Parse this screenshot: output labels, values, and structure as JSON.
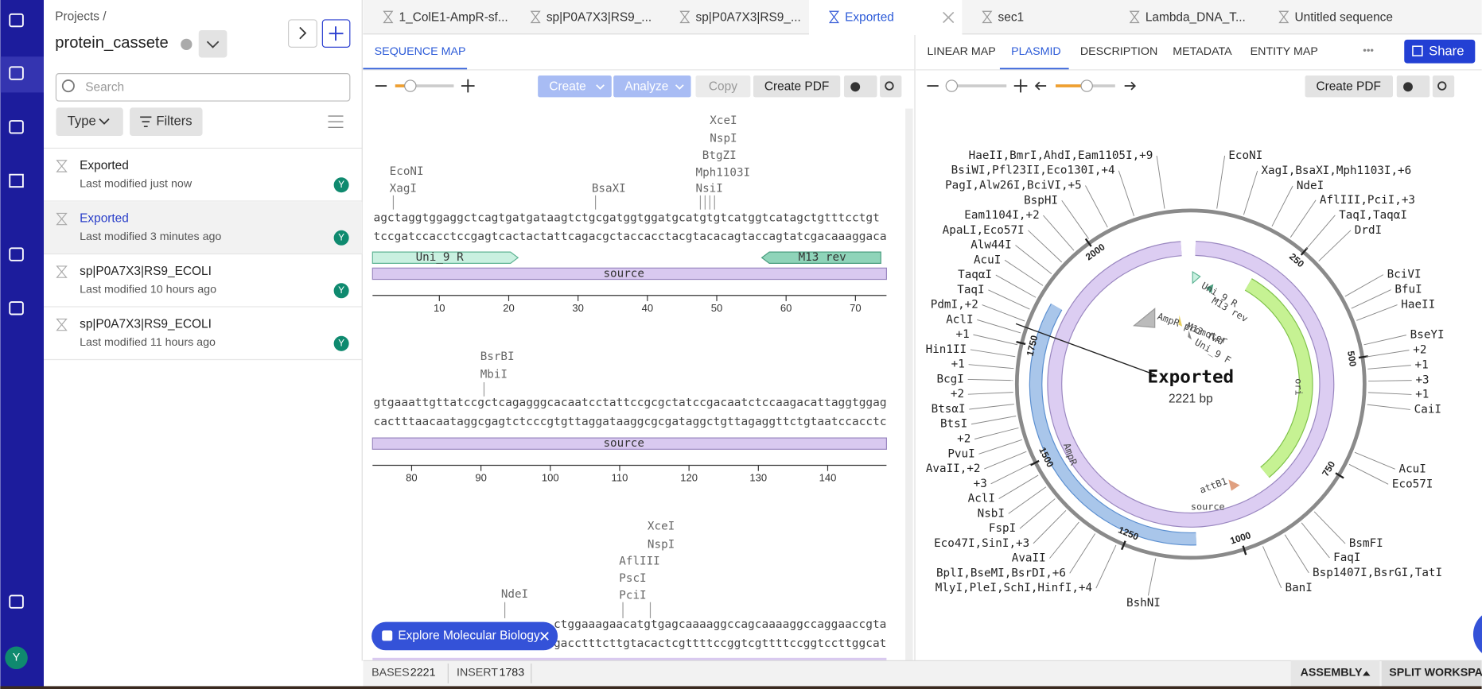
{
  "nav": {
    "avatar": "Y"
  },
  "sidebar": {
    "breadcrumb": "Projects /",
    "project": "protein_cassete",
    "search_placeholder": "Search",
    "type_button": "Type",
    "filters_button": "Filters",
    "files": [
      {
        "name": "Exported",
        "modified": "Last modified just now",
        "owner": "Y"
      },
      {
        "name": "Exported",
        "modified": "Last modified 3 minutes ago",
        "owner": "Y"
      },
      {
        "name": "sp|P0A7X3|RS9_ECOLI",
        "modified": "Last modified 10 hours ago",
        "owner": "Y"
      },
      {
        "name": "sp|P0A7X3|RS9_ECOLI",
        "modified": "Last modified 11 hours ago",
        "owner": "Y"
      }
    ]
  },
  "tabs": [
    "1_ColE1-AmpR-sf...",
    "sp|P0A7X3|RS9_...",
    "sp|P0A7X3|RS9_...",
    "Exported",
    "sec1",
    "Lambda_DNA_T...",
    "Untitled sequence"
  ],
  "sequence_panel": {
    "tab": "SEQUENCE MAP",
    "buttons": [
      "Create",
      "Analyze",
      "Copy",
      "Create PDF"
    ],
    "rows": [
      {
        "enzymes": [
          "EcoNI",
          "XagI",
          "BsaXI",
          "XceI",
          "NspI",
          "BtgZI",
          "Mph1103I",
          "NsiI"
        ],
        "top": "agctaggtggaggctcagtgatgataagtctgcgatggtggatgcatgtgtcatggtcatagctgtttcctgt",
        "bottom": "tccgatccacctccgagtcactactattcagacgctaccacctacgtacacagtaccagtatcgacaaaggaca",
        "features": [
          "Uni_9 R",
          "M13 rev",
          "source"
        ],
        "ruler": [
          10,
          20,
          30,
          40,
          50,
          60,
          70
        ]
      },
      {
        "enzymes": [
          "BsrBI",
          "MbiI"
        ],
        "top": "gtgaaattgttatccgctcagagggcacaatcctattccgcgctatccgacaatctccaagacattaggtggag",
        "bottom": "cactttaacaataggcgagtctcccgtgttaggataaggcgcgataggctgttagaggttctgtaatccacctc",
        "features": [
          "source"
        ],
        "ruler": [
          80,
          90,
          100,
          110,
          120,
          130,
          140
        ]
      },
      {
        "enzymes": [
          "XceI",
          "NspI",
          "AflIII",
          "PscI",
          "PciI",
          "NdeI"
        ],
        "top": "ctggaaagaacatgtgagcaaaaggccagcaaaaggccaggaaccgta",
        "bottom": "gacctttcttgtacactcgttttccggtcgttttccggtccttggcat"
      }
    ]
  },
  "plasmid_panel": {
    "tabs": [
      "LINEAR MAP",
      "PLASMID",
      "DESCRIPTION",
      "METADATA",
      "ENTITY MAP"
    ],
    "more": "•••",
    "share": "Share",
    "pdf": "Create PDF",
    "name": "Exported",
    "length": "2221 bp",
    "scale": [
      250,
      500,
      750,
      1000,
      1250,
      1500,
      1750,
      2000
    ],
    "features": [
      "Uni_9 R",
      "M13 rev",
      "AmpR promoter",
      "M13 fwd",
      "Uni_9 F",
      "ori",
      "AmpR",
      "attB1",
      "source"
    ],
    "enzymes_left": [
      "HaeII,BmrI,AhdI,Eam1105I,+9",
      "BsiWI,Pfl23II,Eco130I,+4",
      "PagI,Alw26I,BciVI,+5",
      "BspHI",
      "Eam1104I,+2",
      "ApaLI,Eco57I",
      "Alw44I",
      "AcuI",
      "TaqαI",
      "TaqI",
      "PdmI,+2",
      "AclI",
      "+1",
      "Hin1II",
      "+1",
      "BcgI",
      "+2",
      "BtsαI",
      "BtsI",
      "+2",
      "PvuI",
      "AvaII,+2",
      "+3",
      "AclI",
      "NsbI",
      "FspI",
      "Eco47I,SinI,+3",
      "AvaII",
      "BplI,BseMI,BsrDI,+6",
      "MlyI,PleI,SchI,HinfI,+4",
      "BshNI"
    ],
    "enzymes_right": [
      "EcoNI",
      "XagI,BsaXI,Mph1103I,+6",
      "NdeI",
      "AflIII,PciI,+3",
      "TaqI,TaqαI",
      "DrdI",
      "BciVI",
      "BfuI",
      "HaeII",
      "BseYI",
      "+2",
      "+1",
      "+3",
      "+1",
      "CaiI",
      "AcuI",
      "Eco57I",
      "BsmFI",
      "FaqI",
      "Bsp1407I,BsrGI,TatI",
      "BanI"
    ]
  },
  "toast": "Explore Molecular Biology",
  "status": {
    "bases_label": "BASES",
    "bases": 2221,
    "insert_label": "INSERT",
    "insert": 1783,
    "assembly": "ASSEMBLY",
    "split": "SPLIT WORKSPA"
  }
}
